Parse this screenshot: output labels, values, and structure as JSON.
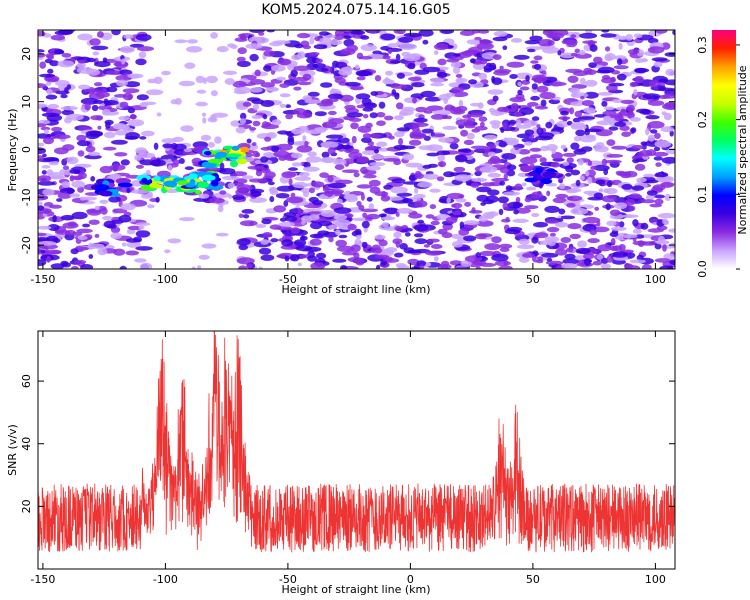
{
  "title": "KOM5.2024.075.14.16.G05",
  "chart_data": [
    {
      "type": "heatmap",
      "xlabel": "Height of straight line (km)",
      "ylabel": "Frequency (Hz)",
      "xlim": [
        -152,
        108
      ],
      "ylim": [
        -25,
        25
      ],
      "xticks": [
        -150,
        -100,
        -50,
        0,
        50,
        100
      ],
      "yticks": [
        -20,
        -10,
        0,
        10,
        20
      ],
      "colorbar": {
        "label": "Normalized spectral amplitude",
        "range": [
          0.0,
          0.32
        ],
        "ticks": [
          0.0,
          0.1,
          0.2,
          0.3
        ],
        "colormap": [
          "#ffffff",
          "#c9a3ff",
          "#8a2be2",
          "#3a00e0",
          "#0000ff",
          "#00a0ff",
          "#00ffff",
          "#00ff60",
          "#40ff00",
          "#c8ff00",
          "#ffff00",
          "#ffa000",
          "#ff2000",
          "#ff0080"
        ]
      },
      "features": [
        {
          "x": -103,
          "y": -7.0,
          "amplitude": 0.22
        },
        {
          "x": -92,
          "y": -7.5,
          "amplitude": 0.24
        },
        {
          "x": -85,
          "y": -6.5,
          "amplitude": 0.18
        },
        {
          "x": -78,
          "y": -2.0,
          "amplitude": 0.2
        },
        {
          "x": -72,
          "y": -1.0,
          "amplitude": 0.26
        },
        {
          "x": -122,
          "y": -8.0,
          "amplitude": 0.12
        },
        {
          "x": 53,
          "y": -5.5,
          "amplitude": 0.1
        }
      ],
      "quiet_zone_x": [
        -108,
        -70
      ]
    },
    {
      "type": "line",
      "xlabel": "Height of straight line (km)",
      "ylabel": "SNR (v/v)",
      "xlim": [
        -152,
        108
      ],
      "ylim": [
        0,
        76
      ],
      "xticks": [
        -150,
        -100,
        -50,
        0,
        50,
        100
      ],
      "yticks": [
        20,
        40,
        60
      ],
      "color": "#ee3333",
      "peaks": [
        {
          "x": -101,
          "y": 70
        },
        {
          "x": -93,
          "y": 55
        },
        {
          "x": -80,
          "y": 76
        },
        {
          "x": -71,
          "y": 76
        },
        {
          "x": -75,
          "y": 65
        },
        {
          "x": 37,
          "y": 41
        },
        {
          "x": 43,
          "y": 42
        }
      ],
      "baseline_mean": 13
    }
  ]
}
